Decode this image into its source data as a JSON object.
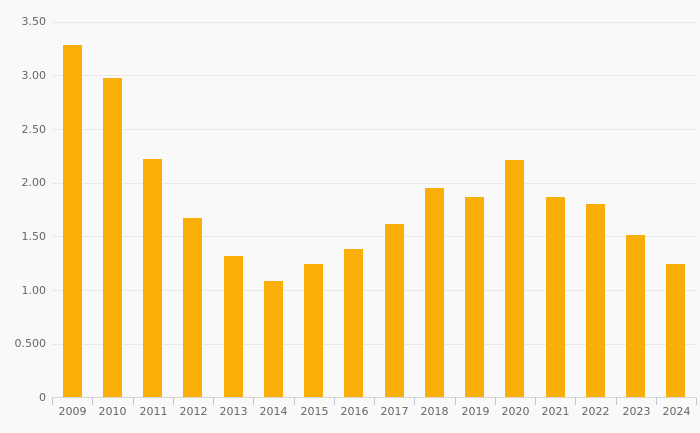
{
  "chart_data": {
    "type": "bar",
    "title": "",
    "xlabel": "",
    "ylabel": "",
    "categories": [
      "2009",
      "2010",
      "2011",
      "2012",
      "2013",
      "2014",
      "2015",
      "2016",
      "2017",
      "2018",
      "2019",
      "2020",
      "2021",
      "2022",
      "2023",
      "2024"
    ],
    "values": [
      3.28,
      2.97,
      2.22,
      1.67,
      1.31,
      1.08,
      1.24,
      1.38,
      1.61,
      1.95,
      1.86,
      2.21,
      1.86,
      1.8,
      1.51,
      1.24
    ],
    "ylim": [
      0,
      3.5
    ],
    "y_ticks": [
      {
        "value": 3.5,
        "label": "3.50"
      },
      {
        "value": 3.0,
        "label": "3.00"
      },
      {
        "value": 2.5,
        "label": "2.50"
      },
      {
        "value": 2.0,
        "label": "2.00"
      },
      {
        "value": 1.5,
        "label": "1.50"
      },
      {
        "value": 1.0,
        "label": "1.00"
      },
      {
        "value": 0.5,
        "label": "0.500"
      },
      {
        "value": 0,
        "label": "0"
      }
    ],
    "grid": true,
    "legend": "none",
    "colors": {
      "bar": "#F9AE08",
      "background": "#F9F9F9",
      "gridline": "#E8E8E8",
      "axis_line": "#D5D5D5",
      "tick_mark": "#B9C8D8",
      "label_text": "#666666"
    }
  }
}
